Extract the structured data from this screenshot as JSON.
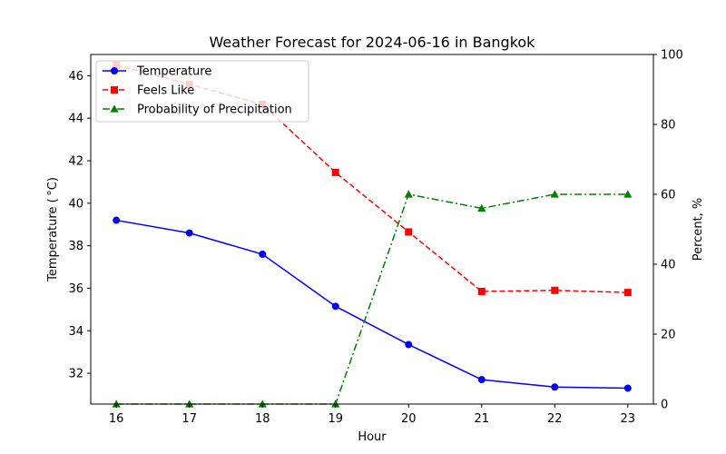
{
  "chart_data": {
    "type": "line",
    "title": "Weather Forecast for 2024-06-16 in Bangkok",
    "xlabel": "Hour",
    "ylabel_left": "Temperature ( °C)",
    "ylabel_right": "Percent, %",
    "x": [
      16,
      17,
      18,
      19,
      20,
      21,
      22,
      23
    ],
    "xlim": [
      15.65,
      23.35
    ],
    "ylim_left": [
      30.55,
      47.0
    ],
    "ylim_right": [
      0,
      100
    ],
    "yticks_left": [
      32,
      34,
      36,
      38,
      40,
      42,
      44,
      46
    ],
    "yticks_right": [
      0,
      20,
      40,
      60,
      80,
      100
    ],
    "grid": false,
    "legend_position": "top-left",
    "series": [
      {
        "name": "Temperature",
        "axis": "left",
        "color": "#0000ff",
        "marker": "circle",
        "line_style": "solid",
        "values": [
          39.2,
          38.6,
          37.6,
          35.15,
          33.35,
          31.7,
          31.35,
          31.3
        ]
      },
      {
        "name": "Feels Like",
        "axis": "left",
        "color": "#ff0000",
        "marker": "square",
        "line_style": "dashed",
        "values": [
          46.5,
          45.6,
          44.65,
          41.45,
          38.65,
          35.85,
          35.9,
          35.8
        ]
      },
      {
        "name": "Probability of Precipitation",
        "axis": "right",
        "color": "#008000",
        "marker": "triangle",
        "line_style": "dashdot",
        "values": [
          0,
          0,
          0,
          0,
          60,
          56,
          60,
          60
        ]
      }
    ]
  }
}
